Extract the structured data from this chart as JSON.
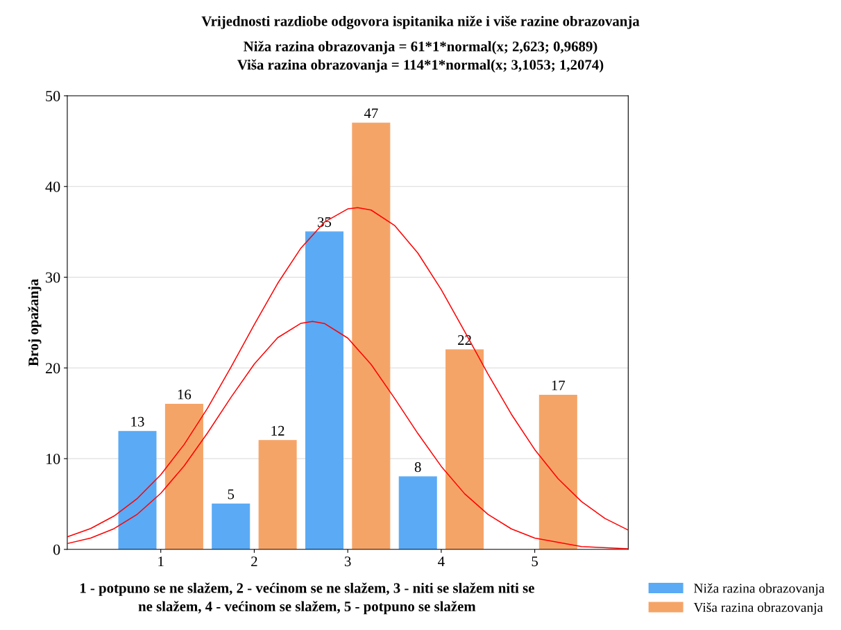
{
  "chart_data": {
    "type": "bar",
    "title": "Vrijednosti razdiobe odgovora ispitanika niže i više razine obrazovanja",
    "subtitle": "Niža razina obrazovanja = 61*1*normal(x; 2,623; 0,9689)\nViša razina obrazovanja = 114*1*normal(x; 3,1053; 1,2074)",
    "xlabel": "1 - potpuno se ne slažem, 2 - većinom se ne slažem, 3 - niti se slažem niti se\nne slažem, 4 - većinom se slažem, 5 - potpuno se slažem",
    "ylabel": "Broj opažanja",
    "xlim": [
      0,
      6
    ],
    "xticks": [
      1,
      2,
      3,
      4,
      5
    ],
    "ylim": [
      0,
      50
    ],
    "yticks": [
      0,
      10,
      20,
      30,
      40,
      50
    ],
    "grid": "y",
    "legend": "bottom right",
    "series": [
      {
        "name": "Niža razina obrazovanja",
        "color": "#5aaaf5",
        "x": [
          0.75,
          1.75,
          2.75,
          3.75
        ],
        "values": [
          13,
          5,
          35,
          8
        ],
        "value_labels": [
          "13",
          "5",
          "35",
          "8"
        ]
      },
      {
        "name": "Viša razina obrazovanja",
        "color": "#f5a468",
        "x": [
          1.25,
          2.25,
          3.25,
          4.25,
          5.25
        ],
        "values": [
          16,
          12,
          47,
          22,
          17
        ],
        "value_labels": [
          "16",
          "12",
          "47",
          "22",
          "17"
        ]
      },
      {
        "type": "line",
        "color": "#ff0000",
        "x": [
          0,
          0.25,
          0.5,
          0.75,
          1,
          1.25,
          1.5,
          1.75,
          2,
          2.25,
          2.5,
          2.623,
          2.75,
          3,
          3.25,
          3.5,
          3.75,
          4,
          4.25,
          4.5,
          4.75,
          5,
          5.5,
          6
        ],
        "values": [
          0.64,
          1.25,
          2.28,
          3.88,
          6.18,
          9.2,
          12.83,
          16.74,
          20.42,
          23.33,
          24.92,
          25.12,
          24.9,
          23.29,
          20.38,
          16.67,
          12.77,
          9.15,
          6.13,
          3.85,
          2.26,
          1.24,
          0.31,
          0.06
        ]
      },
      {
        "type": "line",
        "color": "#ff0000",
        "x": [
          0,
          0.25,
          0.5,
          0.75,
          1,
          1.25,
          1.5,
          1.75,
          2,
          2.25,
          2.5,
          2.75,
          3,
          3.1053,
          3.25,
          3.5,
          3.75,
          4,
          4.25,
          4.5,
          4.75,
          5,
          5.25,
          5.5,
          5.75,
          6
        ],
        "values": [
          1.38,
          2.3,
          3.67,
          5.62,
          8.23,
          11.56,
          15.56,
          20.06,
          24.78,
          29.31,
          33.22,
          36.07,
          37.53,
          37.67,
          37.4,
          35.71,
          32.66,
          28.63,
          24.03,
          19.33,
          14.9,
          11.0,
          7.78,
          5.27,
          3.42,
          2.13
        ]
      }
    ]
  }
}
